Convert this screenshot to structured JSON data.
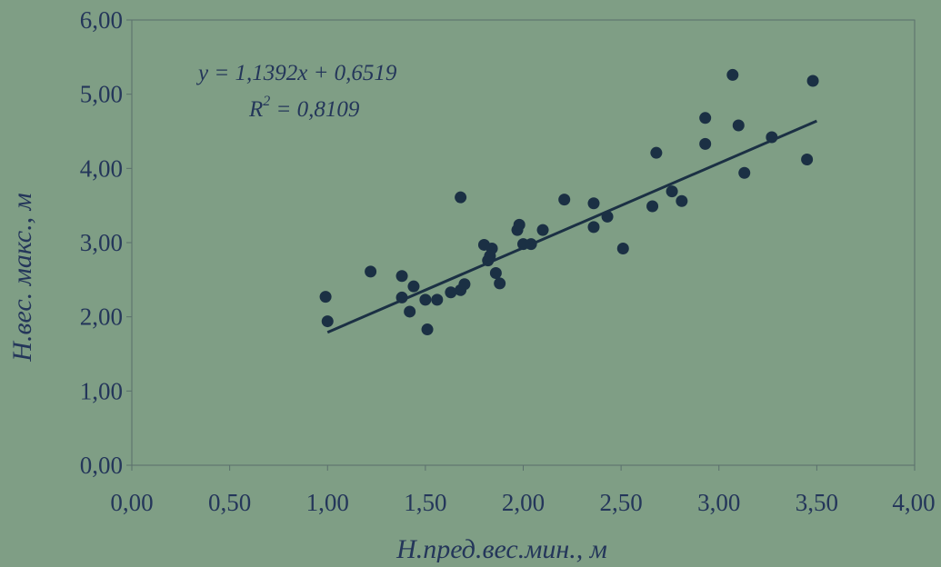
{
  "chart_data": {
    "type": "scatter",
    "xlabel": "Н.пред.вес.мин., м",
    "ylabel": "Н.вес. макс., м",
    "xlim": [
      0,
      4
    ],
    "ylim": [
      0,
      6
    ],
    "x_ticks": [
      "0,00",
      "0,50",
      "1,00",
      "1,50",
      "2,00",
      "2,50",
      "3,00",
      "3,50",
      "4,00"
    ],
    "y_ticks": [
      "0,00",
      "1,00",
      "2,00",
      "3,00",
      "4,00",
      "5,00",
      "6,00"
    ],
    "grid": false,
    "colors": {
      "background": "#7f9e85",
      "points": "#1b3044",
      "trendline": "#1b3044",
      "text": "#24365a"
    },
    "annotation": {
      "equation": "y = 1,1392x + 0,6519",
      "r2_label": "R",
      "r2_sup": "2",
      "r2_value": " = 0,8109"
    },
    "trendline": {
      "slope": 1.1392,
      "intercept": 0.6519,
      "x_range": [
        1.0,
        3.5
      ]
    },
    "points": [
      {
        "x": 0.99,
        "y": 2.27
      },
      {
        "x": 1.0,
        "y": 1.94
      },
      {
        "x": 1.22,
        "y": 2.61
      },
      {
        "x": 1.38,
        "y": 2.55
      },
      {
        "x": 1.38,
        "y": 2.26
      },
      {
        "x": 1.42,
        "y": 2.07
      },
      {
        "x": 1.44,
        "y": 2.41
      },
      {
        "x": 1.5,
        "y": 2.23
      },
      {
        "x": 1.51,
        "y": 1.83
      },
      {
        "x": 1.56,
        "y": 2.23
      },
      {
        "x": 1.63,
        "y": 2.33
      },
      {
        "x": 1.68,
        "y": 2.36
      },
      {
        "x": 1.68,
        "y": 3.61
      },
      {
        "x": 1.7,
        "y": 2.44
      },
      {
        "x": 1.8,
        "y": 2.97
      },
      {
        "x": 1.82,
        "y": 2.76
      },
      {
        "x": 1.84,
        "y": 2.92
      },
      {
        "x": 1.83,
        "y": 2.82
      },
      {
        "x": 1.86,
        "y": 2.59
      },
      {
        "x": 1.88,
        "y": 2.45
      },
      {
        "x": 1.97,
        "y": 3.17
      },
      {
        "x": 1.98,
        "y": 3.24
      },
      {
        "x": 2.0,
        "y": 2.98
      },
      {
        "x": 2.04,
        "y": 2.98
      },
      {
        "x": 2.1,
        "y": 3.17
      },
      {
        "x": 2.21,
        "y": 3.58
      },
      {
        "x": 2.36,
        "y": 3.53
      },
      {
        "x": 2.36,
        "y": 3.21
      },
      {
        "x": 2.43,
        "y": 3.35
      },
      {
        "x": 2.51,
        "y": 2.92
      },
      {
        "x": 2.66,
        "y": 3.49
      },
      {
        "x": 2.68,
        "y": 4.21
      },
      {
        "x": 2.76,
        "y": 3.69
      },
      {
        "x": 2.81,
        "y": 3.56
      },
      {
        "x": 2.93,
        "y": 4.68
      },
      {
        "x": 2.93,
        "y": 4.33
      },
      {
        "x": 3.07,
        "y": 5.26
      },
      {
        "x": 3.1,
        "y": 4.58
      },
      {
        "x": 3.13,
        "y": 3.94
      },
      {
        "x": 3.27,
        "y": 4.42
      },
      {
        "x": 3.45,
        "y": 4.12
      },
      {
        "x": 3.48,
        "y": 5.18
      }
    ]
  }
}
